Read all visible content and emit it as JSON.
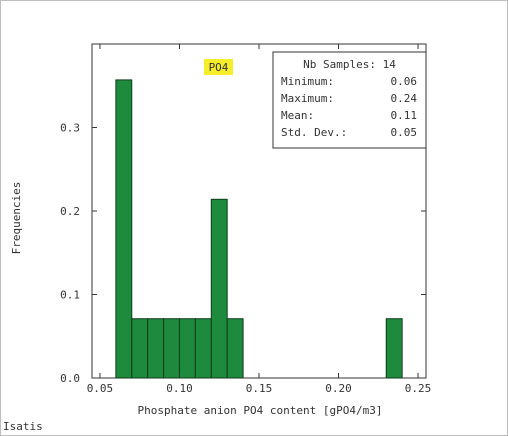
{
  "footer": {
    "text": "Isatis"
  },
  "colors": {
    "bar_fill": "#1d8a3d",
    "bar_stroke": "#0e3d1b",
    "label_bg": "#f5ec2a"
  },
  "chart_data": {
    "type": "bar",
    "title": "PO4",
    "xlabel": "Phosphate anion PO4 content [gPO4/m3]",
    "ylabel": "Frequencies",
    "xlim": [
      0.045,
      0.255
    ],
    "ylim": [
      0,
      0.4
    ],
    "xticks": [
      "0.05",
      "0.10",
      "0.15",
      "0.20",
      "0.25"
    ],
    "yticks": [
      "0.0",
      "0.1",
      "0.2",
      "0.3"
    ],
    "bin_width": 0.01,
    "bins": [
      {
        "start": 0.06,
        "end": 0.07,
        "value": 0.357
      },
      {
        "start": 0.07,
        "end": 0.08,
        "value": 0.071
      },
      {
        "start": 0.08,
        "end": 0.09,
        "value": 0.071
      },
      {
        "start": 0.09,
        "end": 0.1,
        "value": 0.071
      },
      {
        "start": 0.1,
        "end": 0.11,
        "value": 0.071
      },
      {
        "start": 0.11,
        "end": 0.12,
        "value": 0.071
      },
      {
        "start": 0.12,
        "end": 0.13,
        "value": 0.214
      },
      {
        "start": 0.13,
        "end": 0.14,
        "value": 0.071
      },
      {
        "start": 0.23,
        "end": 0.24,
        "value": 0.071
      }
    ],
    "stats": [
      {
        "label": "Nb Samples:",
        "value": "14"
      },
      {
        "label": "Minimum:",
        "value": "0.06"
      },
      {
        "label": "Maximum:",
        "value": "0.24"
      },
      {
        "label": "Mean:",
        "value": "0.11"
      },
      {
        "label": "Std. Dev.:",
        "value": "0.05"
      }
    ]
  }
}
